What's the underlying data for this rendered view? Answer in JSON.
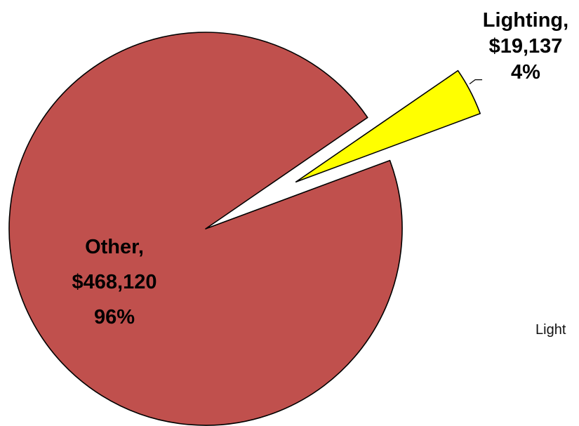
{
  "chart_data": {
    "type": "pie",
    "title": "",
    "slices": [
      {
        "name": "Other",
        "value": 468120,
        "percent": 96,
        "color": "#C0504D",
        "exploded": false,
        "label_lines": [
          "Other,",
          "$468,120",
          "96%"
        ]
      },
      {
        "name": "Lighting",
        "value": 19137,
        "percent": 4,
        "color": "#FFFF00",
        "exploded": true,
        "label_lines": [
          "Lighting,",
          "$19,137",
          "4%"
        ]
      }
    ],
    "legend": {
      "placement": "right",
      "visible_text": "Light"
    }
  }
}
